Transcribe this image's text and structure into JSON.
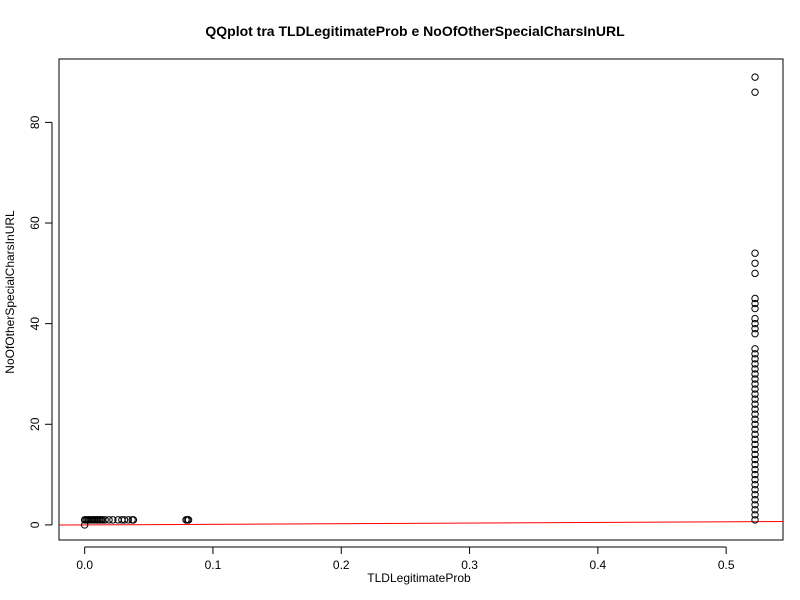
{
  "chart_data": {
    "type": "scatter",
    "title": "QQplot tra TLDLegitimateProb e NoOfOtherSpecialCharsInURL",
    "xlabel": "TLDLegitimateProb",
    "ylabel": "NoOfOtherSpecialCharsInURL",
    "xlim": [
      -0.02,
      0.5443
    ],
    "ylim": [
      -3.0,
      92.6
    ],
    "x_ticks": [
      {
        "value": 0.0,
        "label": "0.0"
      },
      {
        "value": 0.1,
        "label": "0.1"
      },
      {
        "value": 0.2,
        "label": "0.2"
      },
      {
        "value": 0.3,
        "label": "0.3"
      },
      {
        "value": 0.4,
        "label": "0.4"
      },
      {
        "value": 0.5,
        "label": "0.5"
      }
    ],
    "y_ticks": [
      {
        "value": 0,
        "label": "0"
      },
      {
        "value": 20,
        "label": "20"
      },
      {
        "value": 40,
        "label": "40"
      },
      {
        "value": 60,
        "label": "60"
      },
      {
        "value": 80,
        "label": "80"
      }
    ],
    "point_style": "open-circle",
    "point_color": "#000000",
    "reference_line": {
      "color": "#ff0000",
      "intercept": 0.0,
      "slope": 1.25
    },
    "points": [
      {
        "x": 0.0,
        "y": 0
      },
      {
        "x": 0.0,
        "y": 1
      },
      {
        "x": 0.001,
        "y": 1
      },
      {
        "x": 0.002,
        "y": 1
      },
      {
        "x": 0.003,
        "y": 1
      },
      {
        "x": 0.004,
        "y": 1
      },
      {
        "x": 0.005,
        "y": 1
      },
      {
        "x": 0.006,
        "y": 1
      },
      {
        "x": 0.007,
        "y": 1
      },
      {
        "x": 0.008,
        "y": 1
      },
      {
        "x": 0.009,
        "y": 1
      },
      {
        "x": 0.01,
        "y": 1
      },
      {
        "x": 0.011,
        "y": 1
      },
      {
        "x": 0.012,
        "y": 1
      },
      {
        "x": 0.013,
        "y": 1
      },
      {
        "x": 0.014,
        "y": 1
      },
      {
        "x": 0.016,
        "y": 1
      },
      {
        "x": 0.019,
        "y": 1
      },
      {
        "x": 0.022,
        "y": 1
      },
      {
        "x": 0.026,
        "y": 1
      },
      {
        "x": 0.029,
        "y": 1
      },
      {
        "x": 0.031,
        "y": 1
      },
      {
        "x": 0.034,
        "y": 1
      },
      {
        "x": 0.037,
        "y": 1
      },
      {
        "x": 0.038,
        "y": 1
      },
      {
        "x": 0.079,
        "y": 1
      },
      {
        "x": 0.08,
        "y": 1
      },
      {
        "x": 0.081,
        "y": 1
      },
      {
        "x": 0.5225,
        "y": 1
      },
      {
        "x": 0.5225,
        "y": 2
      },
      {
        "x": 0.5225,
        "y": 3
      },
      {
        "x": 0.5225,
        "y": 4
      },
      {
        "x": 0.5225,
        "y": 5
      },
      {
        "x": 0.5225,
        "y": 6
      },
      {
        "x": 0.5225,
        "y": 7
      },
      {
        "x": 0.5225,
        "y": 8
      },
      {
        "x": 0.5225,
        "y": 9
      },
      {
        "x": 0.5225,
        "y": 10
      },
      {
        "x": 0.5225,
        "y": 11
      },
      {
        "x": 0.5225,
        "y": 12
      },
      {
        "x": 0.5225,
        "y": 13
      },
      {
        "x": 0.5225,
        "y": 14
      },
      {
        "x": 0.5225,
        "y": 15
      },
      {
        "x": 0.5225,
        "y": 16
      },
      {
        "x": 0.5225,
        "y": 17
      },
      {
        "x": 0.5225,
        "y": 18
      },
      {
        "x": 0.5225,
        "y": 19
      },
      {
        "x": 0.5225,
        "y": 20
      },
      {
        "x": 0.5225,
        "y": 21
      },
      {
        "x": 0.5225,
        "y": 22
      },
      {
        "x": 0.5225,
        "y": 23
      },
      {
        "x": 0.5225,
        "y": 24
      },
      {
        "x": 0.5225,
        "y": 25
      },
      {
        "x": 0.5225,
        "y": 26
      },
      {
        "x": 0.5225,
        "y": 27
      },
      {
        "x": 0.5225,
        "y": 28
      },
      {
        "x": 0.5225,
        "y": 29
      },
      {
        "x": 0.5225,
        "y": 30
      },
      {
        "x": 0.5225,
        "y": 31
      },
      {
        "x": 0.5225,
        "y": 32
      },
      {
        "x": 0.5225,
        "y": 33
      },
      {
        "x": 0.5225,
        "y": 34
      },
      {
        "x": 0.5225,
        "y": 35
      },
      {
        "x": 0.5225,
        "y": 38
      },
      {
        "x": 0.5225,
        "y": 39
      },
      {
        "x": 0.5225,
        "y": 40
      },
      {
        "x": 0.5225,
        "y": 41
      },
      {
        "x": 0.5225,
        "y": 43
      },
      {
        "x": 0.5225,
        "y": 44
      },
      {
        "x": 0.5225,
        "y": 45
      },
      {
        "x": 0.5225,
        "y": 50
      },
      {
        "x": 0.5225,
        "y": 52
      },
      {
        "x": 0.5225,
        "y": 54
      },
      {
        "x": 0.5225,
        "y": 86
      },
      {
        "x": 0.5225,
        "y": 89
      }
    ]
  }
}
